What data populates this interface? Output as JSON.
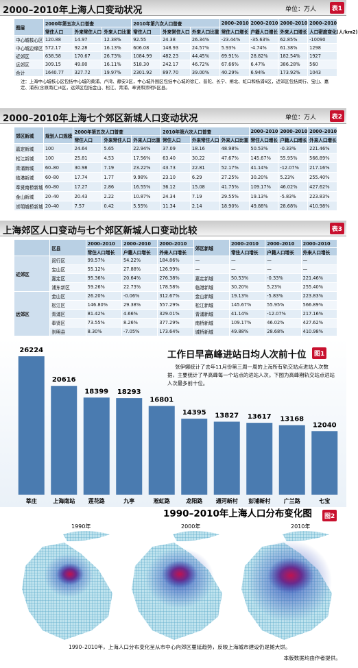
{
  "table1": {
    "title": "2000–2010年上海人口变动状况",
    "unit": "单位：万人",
    "badge": "表1",
    "groups": [
      "2000年第五次人口普查",
      "2010年第六次人口普查",
      "2000–2010",
      "2000–2010",
      "2000–2010",
      "2000–2010"
    ],
    "columns": [
      "图层",
      "常住人口",
      "外来常住人口",
      "外来人口比重",
      "常住人口",
      "外来常住人口",
      "外来人口比重",
      "常住人口增长",
      "户籍人口增长",
      "外来人口增长",
      "人口密度变化(人/km2)"
    ],
    "rows": [
      [
        "中心城核心区",
        "120.88",
        "14.97",
        "12.38%",
        "92.55",
        "24.38",
        "26.34%",
        "-23.44%",
        "-35.63%",
        "62.85%",
        "-10090"
      ],
      [
        "中心城边缘区",
        "572.17",
        "92.28",
        "16.13%",
        "606.08",
        "148.93",
        "24.57%",
        "5.93%",
        "-4.74%",
        "61.38%",
        "1298"
      ],
      [
        "近郊区",
        "638.58",
        "170.67",
        "26.73%",
        "1084.99",
        "482.23",
        "44.45%",
        "69.91%",
        "28.82%",
        "182.54%",
        "1927"
      ],
      [
        "远郊区",
        "309.15",
        "49.80",
        "16.11%",
        "518.30",
        "242.17",
        "46.72%",
        "67.66%",
        "6.47%",
        "386.28%",
        "560"
      ],
      [
        "合计",
        "1640.77",
        "327.72",
        "19.97%",
        "2301.92",
        "897.70",
        "39.00%",
        "40.29%",
        "6.94%",
        "173.92%",
        "1043"
      ]
    ],
    "note": "注：上海中心城核心区包括中心城的黄浦、卢湾、静安3区，中心城外围区包括中心城的徐汇、普陀、长宁、闸北、虹口和杨浦6区，近郊区包括闵行、宝山、嘉定、浦东(含原南汇)4区，远郊区包括金山、松江、青浦、奉贤和崇明5区县。"
  },
  "table2": {
    "title": "2000–2010年上海七个郊区新城人口变动状况",
    "unit": "单位：万人",
    "badge": "表2",
    "groups": [
      "2000年第五次人口普查",
      "2010年第六次人口普查",
      "2000–2010",
      "2000–2010",
      "2000–2010"
    ],
    "columns": [
      "郊区新城",
      "规划人口规模",
      "常住人口",
      "外来常住人口",
      "外来人口比重",
      "常住人口",
      "外来常住人口",
      "外来人口比重",
      "常住人口增长",
      "户籍人口增长",
      "外来人口增长"
    ],
    "rows": [
      [
        "嘉定新城",
        "100",
        "24.64",
        "5.65",
        "22.94%",
        "37.09",
        "18.16",
        "48.98%",
        "50.53%",
        "-0.33%",
        "221.46%"
      ],
      [
        "松江新城",
        "100",
        "25.81",
        "4.53",
        "17.56%",
        "63.40",
        "30.22",
        "47.67%",
        "145.67%",
        "55.95%",
        "566.89%"
      ],
      [
        "青浦新城",
        "60–80",
        "30.98",
        "7.19",
        "23.22%",
        "43.73",
        "22.81",
        "52.17%",
        "41.14%",
        "-12.07%",
        "217.16%"
      ],
      [
        "临港新城",
        "60–80",
        "17.74",
        "1.77",
        "9.98%",
        "23.10",
        "6.29",
        "27.25%",
        "30.20%",
        "5.23%",
        "255.40%"
      ],
      [
        "奉贤南桥新城",
        "60–80",
        "17.27",
        "2.86",
        "16.55%",
        "36.12",
        "15.08",
        "41.75%",
        "109.17%",
        "46.02%",
        "427.62%"
      ],
      [
        "金山新城",
        "20–40",
        "20.43",
        "2.22",
        "10.87%",
        "24.34",
        "7.19",
        "29.55%",
        "19.13%",
        "-5.83%",
        "223.83%"
      ],
      [
        "崇明城桥新城",
        "20–40",
        "7.57",
        "0.42",
        "5.55%",
        "11.34",
        "2.14",
        "18.90%",
        "49.88%",
        "28.68%",
        "410.98%"
      ]
    ]
  },
  "table3": {
    "title": "上海郊区人口变动与七个郊区新城人口变动比较",
    "badge": "表3",
    "groups": [
      "2000–2010",
      "2000–2010",
      "2000–2010",
      "2000–2010",
      "2000–2010",
      "2000–2010"
    ],
    "columns": [
      "区县",
      "常住人口增长",
      "户籍人口增长",
      "外来人口增长",
      "郊区新城",
      "常住人口增长",
      "户籍人口增长",
      "外来人口增长"
    ],
    "sections": [
      {
        "region": "近郊区",
        "rows": [
          [
            "闵行区",
            "99.57%",
            "54.22%",
            "184.86%",
            "—",
            "—",
            "—",
            "—"
          ],
          [
            "宝山区",
            "55.12%",
            "27.88%",
            "126.99%",
            "—",
            "—",
            "—",
            "—"
          ],
          [
            "嘉定区",
            "95.36%",
            "20.64%",
            "276.38%",
            "嘉定新城",
            "50.53%",
            "-0.33%",
            "221.46%"
          ],
          [
            "浦东新区",
            "59.26%",
            "22.73%",
            "178.58%",
            "临港新城",
            "30.20%",
            "5.23%",
            "255.40%"
          ]
        ]
      },
      {
        "region": "远郊区",
        "rows": [
          [
            "金山区",
            "26.20%",
            "-0.06%",
            "312.67%",
            "金山新城",
            "19.13%",
            "-5.83%",
            "223.83%"
          ],
          [
            "松江区",
            "146.80%",
            "29.38%",
            "557.29%",
            "松江新城",
            "145.67%",
            "55.95%",
            "566.89%"
          ],
          [
            "青浦区",
            "81.42%",
            "4.66%",
            "329.01%",
            "青浦新城",
            "41.14%",
            "-12.07%",
            "217.16%"
          ],
          [
            "奉贤区",
            "73.55%",
            "8.26%",
            "377.29%",
            "南桥新城",
            "109.17%",
            "46.02%",
            "427.62%"
          ],
          [
            "崇明县",
            "8.30%",
            "-7.05%",
            "173.64%",
            "城桥新城",
            "49.88%",
            "28.68%",
            "410.98%"
          ]
        ]
      }
    ]
  },
  "chart_data": {
    "type": "bar",
    "title": "工作日早高峰进站日均人次前十位",
    "badge": "图1",
    "description": "张伊娜统计了去年11月份第三周一周的上海所有轨交站点进站人次数据，主要统计了早高峰每一个站点的进站人次。下图为高峰期轨交站点进站人次最多前十位。",
    "categories": [
      "莘庄",
      "上海南站",
      "莲花路",
      "九亭",
      "淞虹路",
      "龙阳路",
      "通河新村",
      "彭浦新村",
      "广兰路",
      "七宝"
    ],
    "values": [
      26224,
      20616,
      18399,
      18293,
      16801,
      14395,
      13827,
      13617,
      13168,
      12040
    ],
    "color": "#4a7bb0"
  },
  "figure2": {
    "title": "1990–2010年上海人口分布变化图",
    "badge": "图2",
    "maps": [
      "1990年",
      "2000年",
      "2010年"
    ],
    "caption": "1990–2010年，上海人口分布变化呈从市中心向郊区蔓延趋势，反映上海城市建设仍是摊大饼。",
    "source": "本版数据均由作者提供。"
  }
}
